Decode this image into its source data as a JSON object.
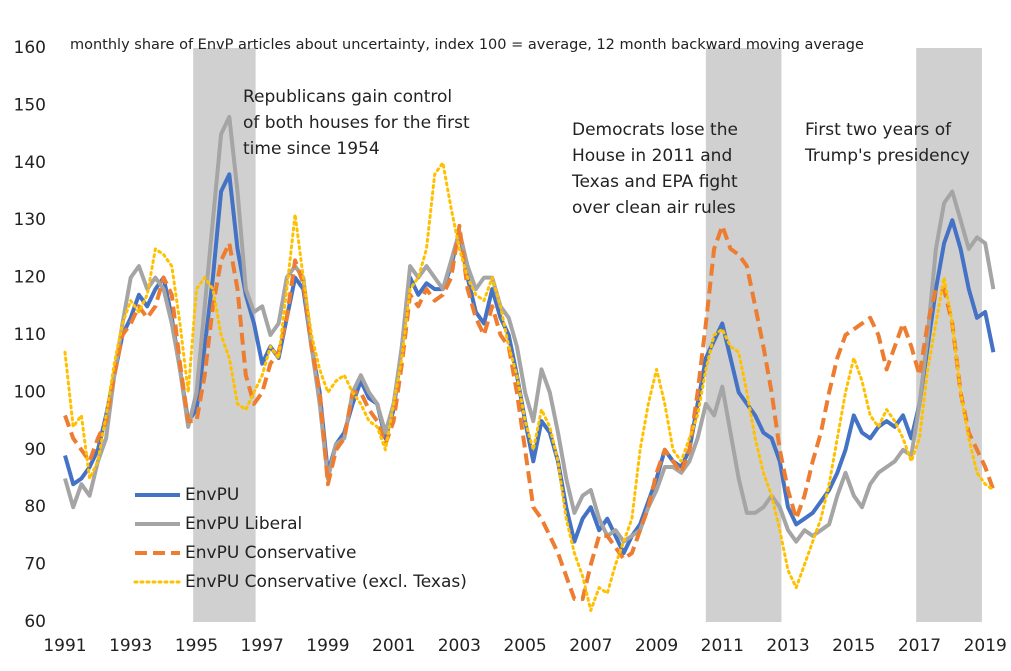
{
  "chart_data": {
    "type": "line",
    "title": "monthly share of EnvP articles about uncertainty, index 100 = average, 12 month backward moving average",
    "x": [
      1991,
      1991.25,
      1991.5,
      1991.75,
      1992,
      1992.25,
      1992.5,
      1992.75,
      1993,
      1993.25,
      1993.5,
      1993.75,
      1994,
      1994.25,
      1994.5,
      1994.75,
      1995,
      1995.25,
      1995.5,
      1995.75,
      1996,
      1996.25,
      1996.5,
      1996.75,
      1997,
      1997.25,
      1997.5,
      1997.75,
      1998,
      1998.25,
      1998.5,
      1998.75,
      1999,
      1999.25,
      1999.5,
      1999.75,
      2000,
      2000.25,
      2000.5,
      2000.75,
      2001,
      2001.25,
      2001.5,
      2001.75,
      2002,
      2002.25,
      2002.5,
      2002.75,
      2003,
      2003.25,
      2003.5,
      2003.75,
      2004,
      2004.25,
      2004.5,
      2004.75,
      2005,
      2005.25,
      2005.5,
      2005.75,
      2006,
      2006.25,
      2006.5,
      2006.75,
      2007,
      2007.25,
      2007.5,
      2007.75,
      2008,
      2008.25,
      2008.5,
      2008.75,
      2009,
      2009.25,
      2009.5,
      2009.75,
      2010,
      2010.25,
      2010.5,
      2010.75,
      2011,
      2011.25,
      2011.5,
      2011.75,
      2012,
      2012.25,
      2012.5,
      2012.75,
      2013,
      2013.25,
      2013.5,
      2013.75,
      2014,
      2014.25,
      2014.5,
      2014.75,
      2015,
      2015.25,
      2015.5,
      2015.75,
      2016,
      2016.25,
      2016.5,
      2016.75,
      2017,
      2017.25,
      2017.5,
      2017.75,
      2018,
      2018.25,
      2018.5,
      2018.75,
      2019,
      2019.25
    ],
    "series": [
      {
        "name": "EnvPU",
        "color": "#4472c4",
        "style": "solid",
        "values": [
          89,
          84,
          85,
          87,
          90,
          96,
          103,
          110,
          113,
          117,
          115,
          118,
          120,
          113,
          104,
          95,
          97,
          108,
          120,
          135,
          138,
          125,
          117,
          112,
          105,
          108,
          106,
          113,
          120,
          118,
          108,
          100,
          86,
          91,
          93,
          98,
          102,
          99,
          98,
          92,
          97,
          108,
          120,
          117,
          119,
          118,
          118,
          122,
          128,
          120,
          114,
          112,
          118,
          113,
          110,
          103,
          95,
          88,
          95,
          93,
          88,
          80,
          74,
          78,
          80,
          76,
          78,
          75,
          72,
          75,
          77,
          81,
          85,
          90,
          88,
          87,
          90,
          98,
          106,
          109,
          112,
          106,
          100,
          98,
          96,
          93,
          92,
          88,
          80,
          77,
          78,
          79,
          81,
          83,
          86,
          90,
          96,
          93,
          92,
          94,
          95,
          94,
          96,
          92,
          98,
          108,
          118,
          126,
          130,
          125,
          118,
          113,
          114,
          107
        ]
      },
      {
        "name": "EnvPU Liberal",
        "color": "#a5a5a5",
        "style": "solid",
        "values": [
          85,
          80,
          84,
          82,
          88,
          92,
          103,
          112,
          120,
          122,
          118,
          120,
          118,
          112,
          104,
          94,
          100,
          115,
          130,
          145,
          148,
          135,
          118,
          114,
          115,
          110,
          112,
          120,
          122,
          120,
          108,
          98,
          85,
          91,
          92,
          100,
          103,
          100,
          98,
          93,
          98,
          108,
          122,
          120,
          122,
          120,
          118,
          123,
          128,
          122,
          118,
          120,
          120,
          115,
          113,
          108,
          100,
          95,
          104,
          100,
          93,
          85,
          79,
          82,
          83,
          78,
          75,
          76,
          74,
          75,
          76,
          80,
          83,
          87,
          87,
          86,
          88,
          92,
          98,
          96,
          101,
          93,
          85,
          79,
          79,
          80,
          82,
          80,
          76,
          74,
          76,
          75,
          76,
          77,
          82,
          86,
          82,
          80,
          84,
          86,
          87,
          88,
          90,
          89,
          98,
          110,
          125,
          133,
          135,
          130,
          125,
          127,
          126,
          118
        ]
      },
      {
        "name": "EnvPU Conservative",
        "color": "#ed7d31",
        "style": "dashed",
        "values": [
          96,
          92,
          90,
          88,
          92,
          95,
          103,
          110,
          112,
          115,
          113,
          115,
          120,
          117,
          105,
          95,
          95,
          103,
          115,
          123,
          126,
          118,
          103,
          98,
          100,
          105,
          107,
          113,
          123,
          119,
          108,
          100,
          84,
          90,
          92,
          100,
          100,
          97,
          95,
          91,
          95,
          105,
          117,
          115,
          118,
          116,
          117,
          120,
          129,
          118,
          113,
          110,
          115,
          110,
          108,
          100,
          90,
          80,
          78,
          75,
          72,
          68,
          64,
          64,
          70,
          75,
          75,
          73,
          71,
          72,
          76,
          80,
          86,
          90,
          88,
          86,
          90,
          100,
          112,
          125,
          129,
          125,
          124,
          122,
          115,
          108,
          100,
          90,
          83,
          78,
          82,
          88,
          93,
          100,
          106,
          110,
          111,
          112,
          113,
          110,
          104,
          108,
          112,
          108,
          103,
          112,
          118,
          118,
          112,
          100,
          93,
          90,
          87,
          83
        ]
      },
      {
        "name": "EnvPU Conservative (excl. Texas)",
        "color": "#ffc000",
        "style": "dotted",
        "values": [
          107,
          94,
          96,
          85,
          88,
          96,
          105,
          112,
          116,
          114,
          117,
          125,
          124,
          122,
          112,
          100,
          118,
          120,
          118,
          110,
          106,
          98,
          97,
          100,
          103,
          108,
          106,
          118,
          131,
          120,
          110,
          104,
          100,
          102,
          103,
          100,
          98,
          95,
          94,
          90,
          98,
          106,
          118,
          120,
          125,
          138,
          140,
          132,
          125,
          120,
          117,
          116,
          120,
          115,
          108,
          103,
          95,
          90,
          97,
          94,
          88,
          78,
          72,
          68,
          62,
          66,
          65,
          70,
          74,
          78,
          90,
          98,
          104,
          98,
          90,
          88,
          92,
          96,
          104,
          110,
          111,
          108,
          107,
          100,
          92,
          86,
          82,
          76,
          69,
          66,
          70,
          74,
          78,
          84,
          92,
          100,
          106,
          102,
          96,
          94,
          97,
          95,
          92,
          88,
          92,
          104,
          112,
          120,
          112,
          100,
          92,
          86,
          84,
          83
        ]
      }
    ],
    "annotations": [
      {
        "lines": [
          "Republicans gain control",
          "of both houses for the first",
          "time since 1954"
        ],
        "x0": 1994.9,
        "x1": 1996.8
      },
      {
        "lines": [
          "Democrats lose the",
          "House in 2011 and",
          "Texas and EPA fight",
          "over clean air rules"
        ],
        "x0": 2010.5,
        "x1": 2012.8
      },
      {
        "lines": [
          "First two years of",
          "Trump's presidency"
        ],
        "x0": 2016.9,
        "x1": 2018.9
      }
    ],
    "xlim": [
      1991,
      2019.45
    ],
    "xticks": [
      1991,
      1993,
      1995,
      1997,
      1999,
      2001,
      2003,
      2005,
      2007,
      2009,
      2011,
      2013,
      2015,
      2017,
      2019
    ],
    "ylim": [
      60,
      160
    ],
    "yticks": [
      60,
      70,
      80,
      90,
      100,
      110,
      120,
      130,
      140,
      150,
      160
    ],
    "grid": false,
    "legend": "lower left"
  }
}
